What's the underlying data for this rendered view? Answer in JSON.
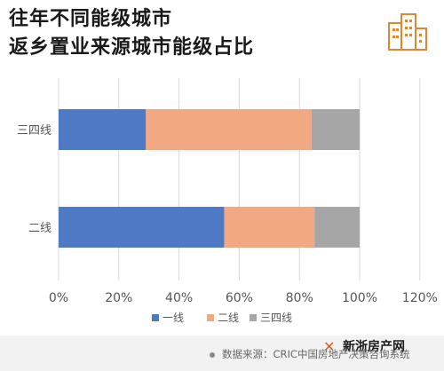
{
  "title_lines": [
    "往年不同能级城市",
    "返乡置业来源城市能级占比"
  ],
  "icon": "building-icon",
  "colors": {
    "series1": "#4e79c4",
    "series2": "#f2a882",
    "series3": "#a6a6a6",
    "accent": "#e6832e",
    "grid": "#d9d9d9",
    "axis_text": "#555555"
  },
  "chart_data": {
    "type": "bar",
    "orientation": "horizontal",
    "stacked": true,
    "categories": [
      "三四线",
      "二线"
    ],
    "series": [
      {
        "name": "一线",
        "values": [
          29,
          55
        ]
      },
      {
        "name": "二线",
        "values": [
          55,
          30
        ]
      },
      {
        "name": "三四线",
        "values": [
          16,
          15
        ]
      }
    ],
    "xlim": [
      0,
      120
    ],
    "xticks": [
      "0%",
      "20%",
      "40%",
      "60%",
      "80%",
      "100%",
      "120%"
    ],
    "grid": "vertical",
    "legend": "bottom",
    "title": "往年不同能级城市返乡置业来源城市能级占比"
  },
  "footer": {
    "source": "数据来源：CRIC中国房地产决策咨询系统",
    "brand": "新浙房产网"
  }
}
